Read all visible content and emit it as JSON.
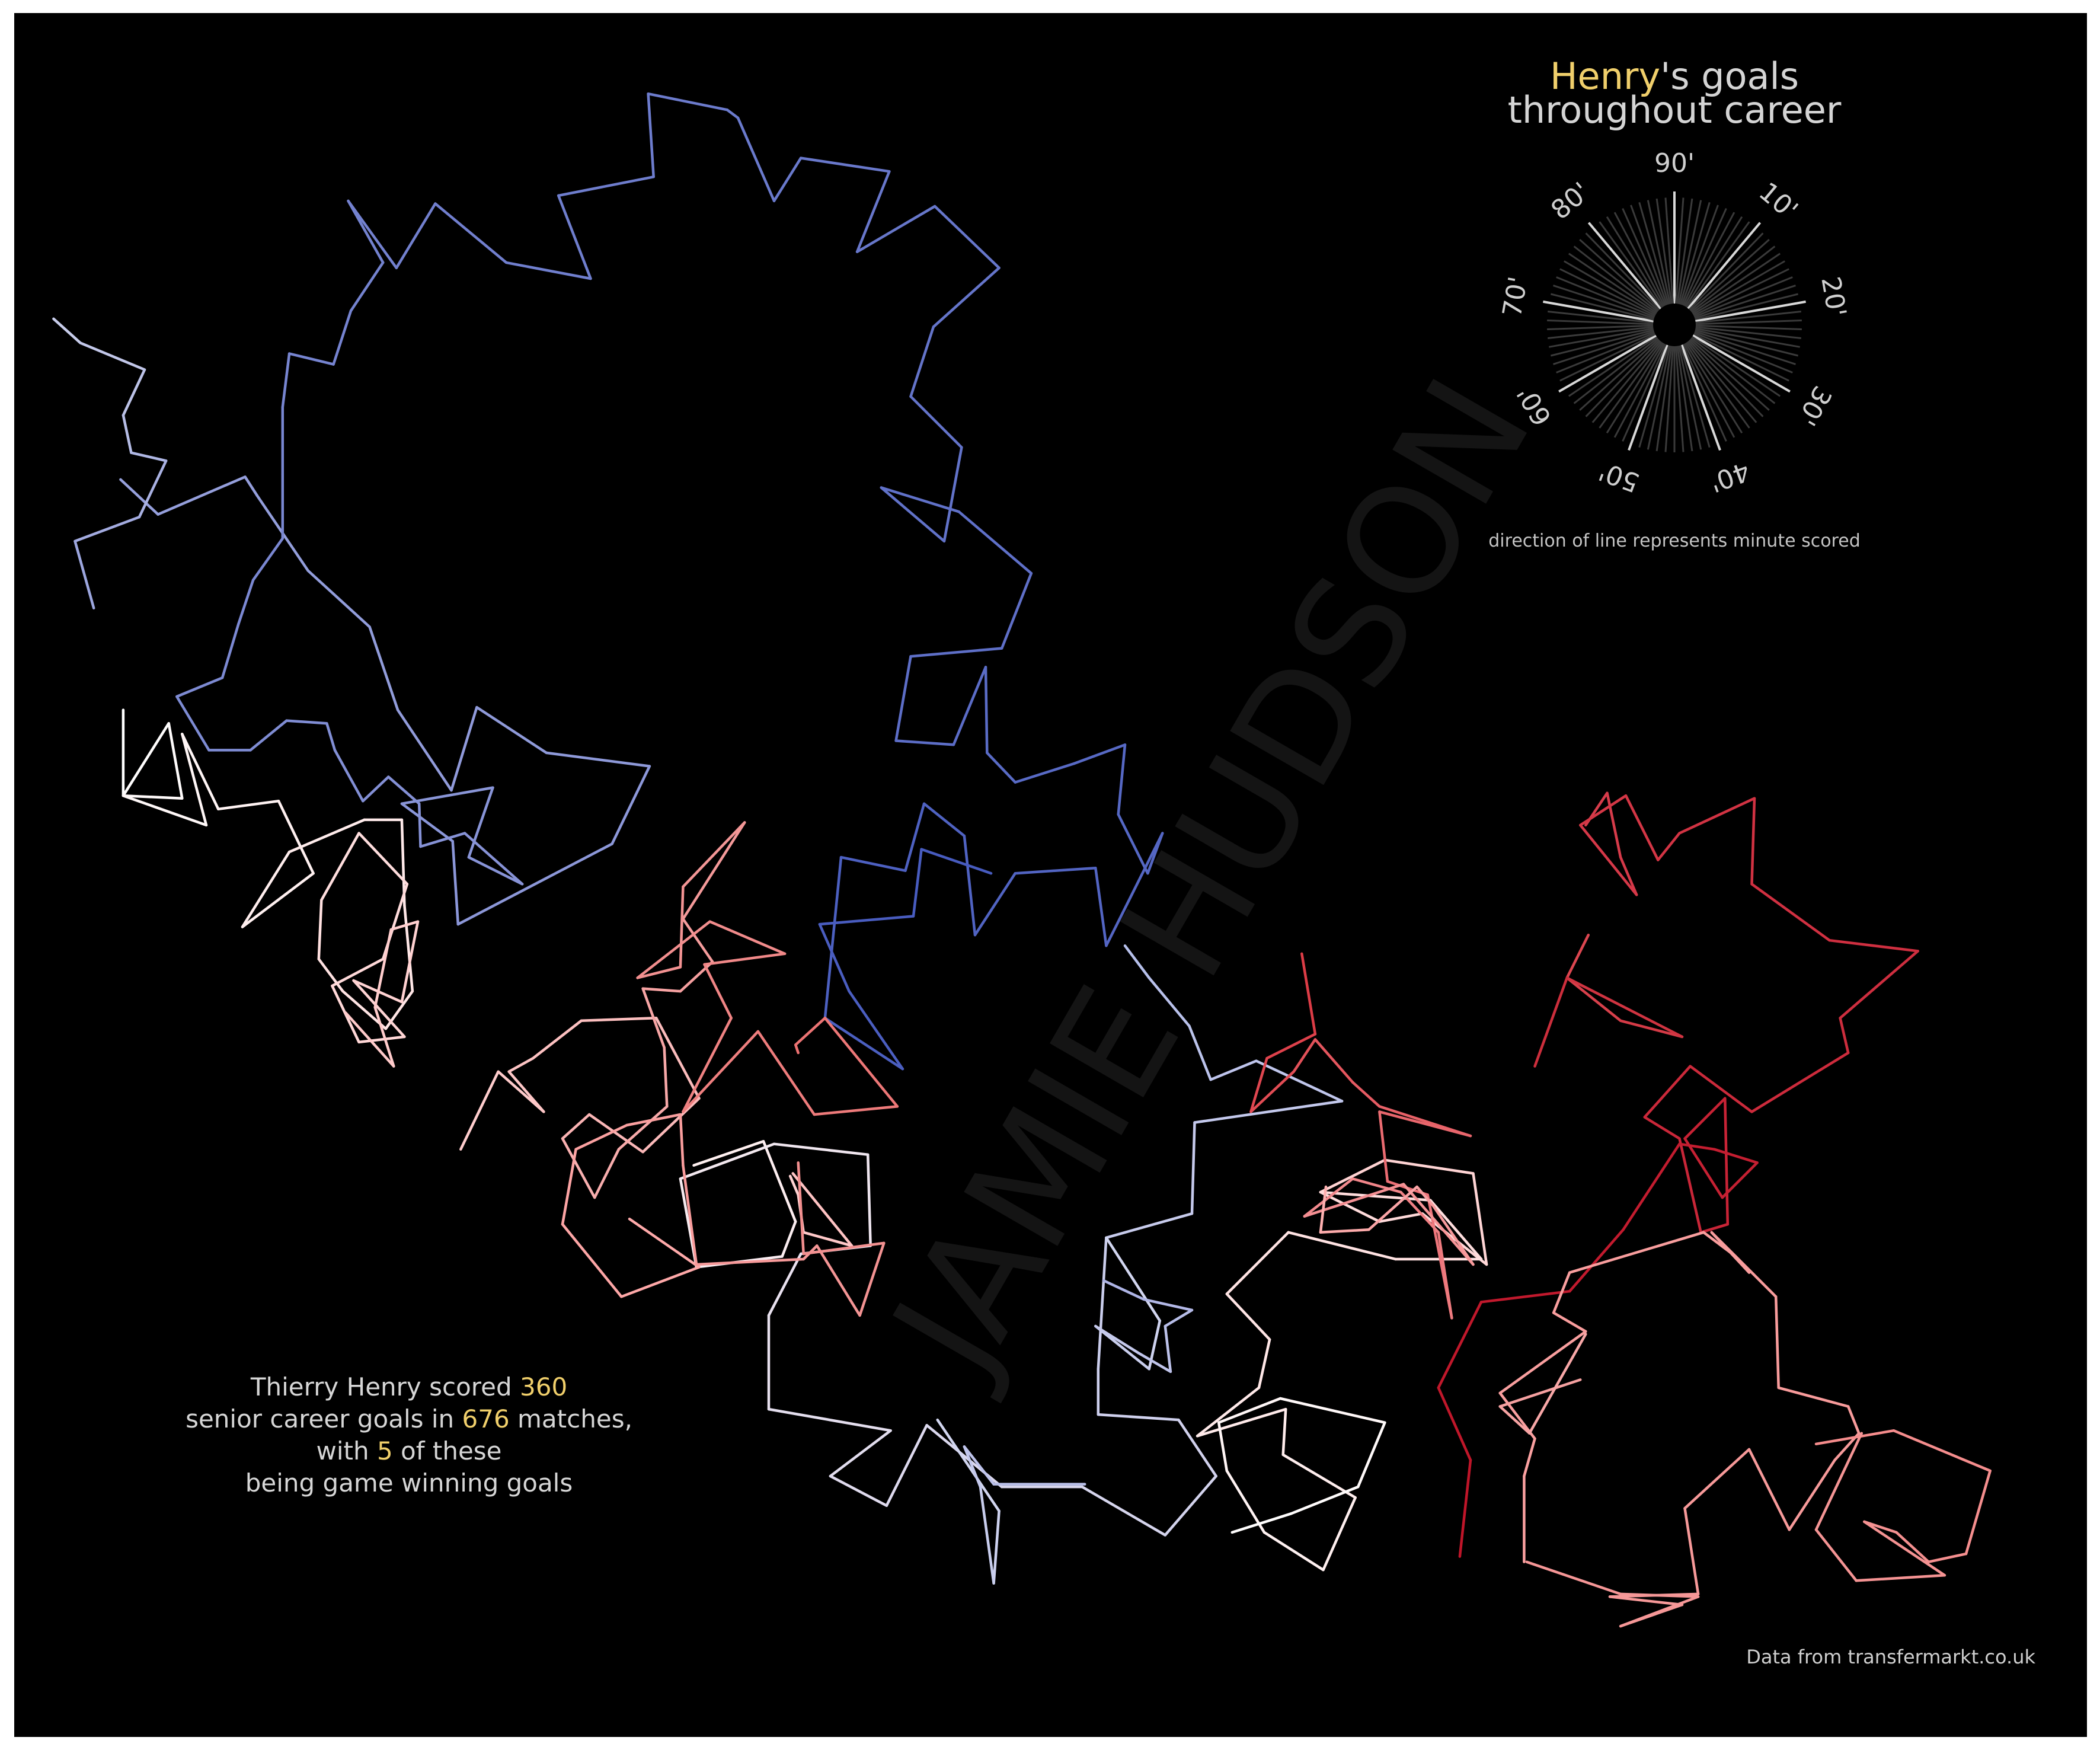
{
  "title": {
    "name": "Henry",
    "rest1": "'s goals",
    "line2": "throughout career",
    "highlight_color": "#f0cf6b",
    "text_color": "#d4d4d4"
  },
  "legend": {
    "minute_labels": [
      "90'",
      "10'",
      "20'",
      "30'",
      "40'",
      "50'",
      "60'",
      "70'",
      "80'"
    ],
    "note": "direction of line represents minute scored"
  },
  "stats": {
    "line1_prefix": "Thierry Henry scored ",
    "goals": "360",
    "line2_prefix": "senior career goals in ",
    "matches": "676",
    "line2_suffix": " matches,",
    "line3_prefix": "with ",
    "winners": "5",
    "line3_suffix": " of these",
    "line4": "being game winning goals"
  },
  "source": "Data from transfermarkt.co.uk",
  "watermark": "JAMIE HUDSON",
  "colors": {
    "background": "#000000",
    "early_career": "#4a5bbf",
    "mid_career": "#ffffff",
    "late_career": "#c0152a"
  },
  "chart_data": {
    "type": "line",
    "encoding": "random walk: each goal is one fixed-length step whose direction encodes the minute scored",
    "total_goals": 360,
    "total_matches": 676,
    "game_winning_goals": 5
  }
}
